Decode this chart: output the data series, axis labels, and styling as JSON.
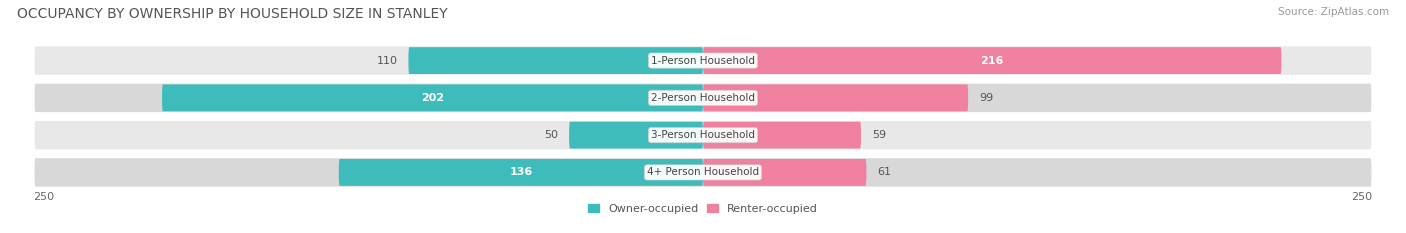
{
  "title": "OCCUPANCY BY OWNERSHIP BY HOUSEHOLD SIZE IN STANLEY",
  "source": "Source: ZipAtlas.com",
  "categories": [
    "1-Person Household",
    "2-Person Household",
    "3-Person Household",
    "4+ Person Household"
  ],
  "owner_values": [
    110,
    202,
    50,
    136
  ],
  "renter_values": [
    216,
    99,
    59,
    61
  ],
  "owner_color": "#3ebcbc",
  "renter_color": "#f080a0",
  "owner_color_light": "#b0e0e0",
  "renter_color_light": "#f8c0d0",
  "x_max": 250,
  "x_min": -250,
  "axis_label_left": "250",
  "axis_label_right": "250",
  "legend_owner": "Owner-occupied",
  "legend_renter": "Renter-occupied",
  "title_fontsize": 10,
  "source_fontsize": 7.5,
  "bar_height": 0.72,
  "background_color": "#ffffff",
  "row_bg_colors": [
    "#eeeeee",
    "#e0e0e0",
    "#eeeeee",
    "#e0e0e0"
  ],
  "row_bg_light": [
    "#f8f8f8",
    "#efefef",
    "#f8f8f8",
    "#efefef"
  ]
}
